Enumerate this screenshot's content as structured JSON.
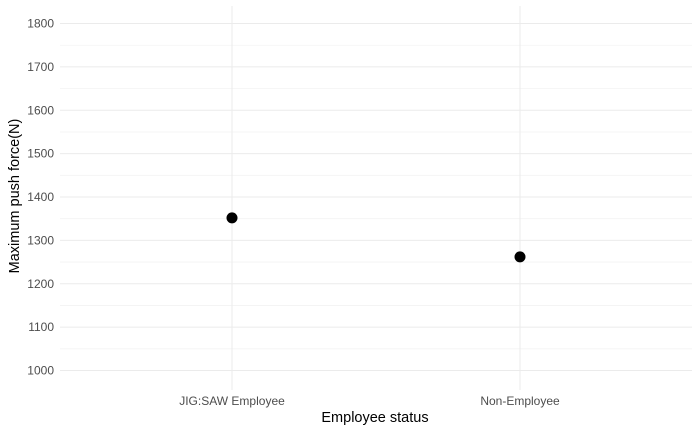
{
  "chart_data": {
    "type": "scatter",
    "title": "",
    "xlabel": "Employee status",
    "ylabel": "Maximum push force(N)",
    "categories": [
      "JIG:SAW Employee",
      "Non-Employee"
    ],
    "values": [
      1352,
      1262
    ],
    "ylim": [
      1000,
      1800
    ],
    "yticks": [
      1000,
      1100,
      1200,
      1300,
      1400,
      1500,
      1600,
      1700,
      1800
    ],
    "grid": true,
    "legend": "none",
    "colors": {
      "point": "#000000",
      "grid_major": "#ebebeb",
      "grid_minor": "#f3f3f3",
      "tick_text": "#4d4d4d",
      "background": "#ffffff"
    }
  }
}
